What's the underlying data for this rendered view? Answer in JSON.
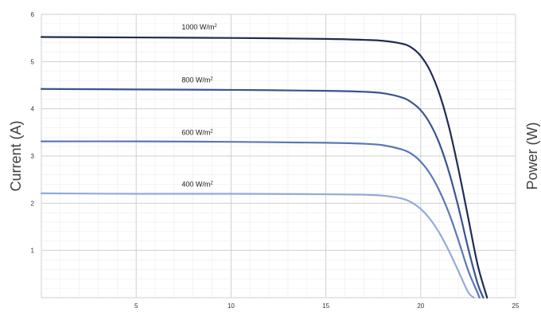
{
  "chart_data": {
    "type": "line",
    "title": "",
    "ylabel": "Current (A)",
    "y2label": "Power (W)",
    "xlim": [
      0,
      25
    ],
    "ylim": [
      0,
      6
    ],
    "x_ticks": [
      5,
      10,
      15,
      20,
      25
    ],
    "y_ticks": [
      1,
      2,
      3,
      4,
      5,
      6
    ],
    "grid": true,
    "series": [
      {
        "name": "1000 W/m",
        "name_sup": "2",
        "color": "#1f2d52",
        "x": [
          0,
          5,
          10,
          15,
          17,
          18,
          19,
          19.5,
          20,
          20.5,
          21,
          21.5,
          22,
          22.5,
          23,
          23.5
        ],
        "y": [
          5.52,
          5.51,
          5.5,
          5.48,
          5.46,
          5.44,
          5.38,
          5.3,
          5.12,
          4.8,
          4.3,
          3.6,
          2.7,
          1.7,
          0.7,
          0
        ]
      },
      {
        "name": "800 W/m",
        "name_sup": "2",
        "color": "#3a5590",
        "x": [
          0,
          5,
          10,
          15,
          17,
          18,
          19,
          19.5,
          20,
          20.5,
          21,
          21.5,
          22,
          22.5,
          23,
          23.3
        ],
        "y": [
          4.42,
          4.41,
          4.4,
          4.38,
          4.36,
          4.33,
          4.24,
          4.14,
          3.97,
          3.68,
          3.25,
          2.65,
          1.9,
          1.05,
          0.3,
          0
        ]
      },
      {
        "name": "600 W/m",
        "name_sup": "2",
        "color": "#5a78b8",
        "x": [
          0,
          5,
          10,
          15,
          17,
          18,
          19,
          19.5,
          20,
          20.5,
          21,
          21.5,
          22,
          22.5,
          23,
          23.1
        ],
        "y": [
          3.31,
          3.31,
          3.3,
          3.28,
          3.26,
          3.23,
          3.14,
          3.05,
          2.88,
          2.62,
          2.25,
          1.78,
          1.2,
          0.58,
          0.1,
          0
        ]
      },
      {
        "name": "400 W/m",
        "name_sup": "2",
        "color": "#92abda",
        "x": [
          0,
          5,
          10,
          15,
          17,
          18,
          19,
          19.5,
          20,
          20.5,
          21,
          21.5,
          22,
          22.5,
          22.8
        ],
        "y": [
          2.21,
          2.2,
          2.2,
          2.19,
          2.18,
          2.16,
          2.1,
          2.02,
          1.88,
          1.66,
          1.36,
          0.98,
          0.55,
          0.12,
          0
        ]
      }
    ],
    "series_label_positions": [
      {
        "x": 7.4,
        "y": 5.68
      },
      {
        "x": 7.4,
        "y": 4.56
      },
      {
        "x": 7.4,
        "y": 3.45
      },
      {
        "x": 7.4,
        "y": 2.35
      }
    ]
  }
}
